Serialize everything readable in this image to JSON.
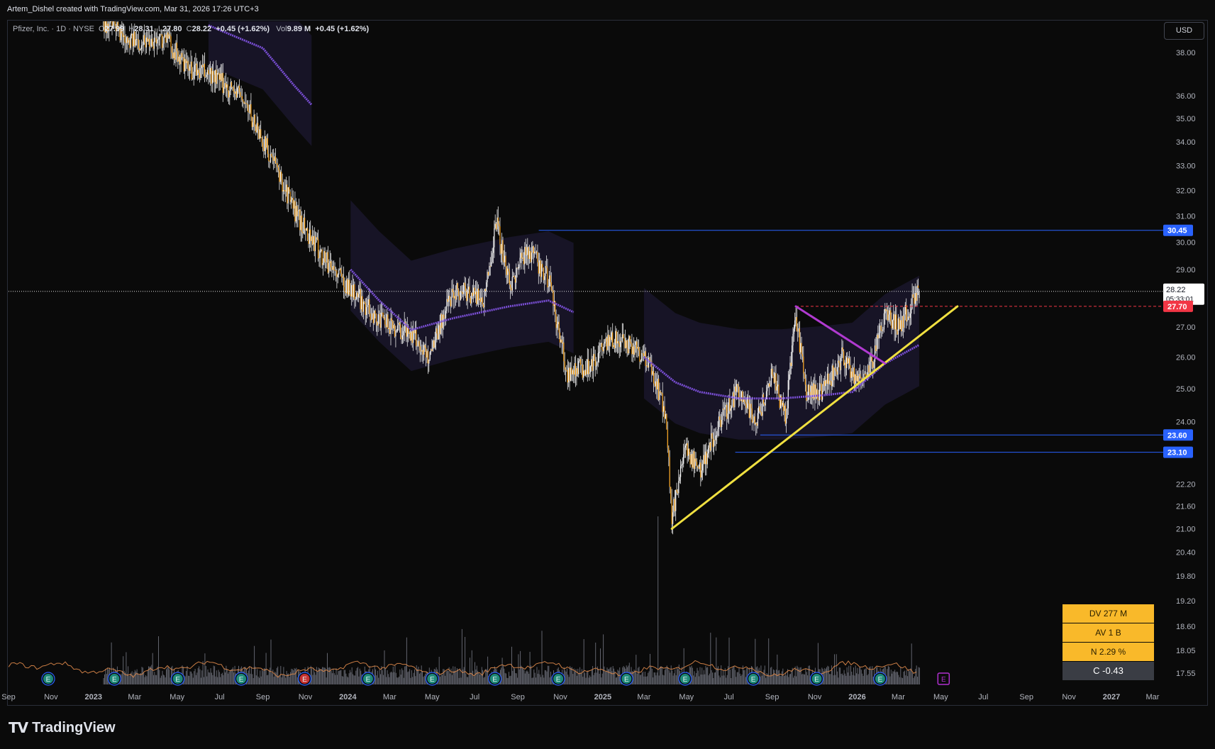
{
  "header": {
    "credit": "Artem_Dishel created with TradingView.com, Mar 31, 2026 17:26 UTC+3"
  },
  "legend": {
    "symbol": "Pfizer, Inc. · 1D · NYSE",
    "open_label": "O",
    "open": "27.99",
    "high_label": "H",
    "high": "28.31",
    "low_label": "L",
    "low": "27.80",
    "close_label": "C",
    "close": "28.22",
    "change": "+0.45 (+1.62%)",
    "vol_label": "Vol",
    "vol": "9.89 M",
    "vol_change": "+0.45 (+1.62%)"
  },
  "currency_button": "USD",
  "price_axis": {
    "ticks": [
      "38.00",
      "36.00",
      "35.00",
      "34.00",
      "33.00",
      "32.00",
      "31.00",
      "30.00",
      "29.00",
      "27.00",
      "26.00",
      "25.00",
      "24.00",
      "22.20",
      "21.60",
      "21.00",
      "20.40",
      "19.80",
      "19.20",
      "18.60",
      "18.05",
      "17.55"
    ],
    "last_price": "28.22",
    "countdown": "05:33:01",
    "badges": [
      {
        "value": "30.45",
        "color": "#2962ff"
      },
      {
        "value": "27.70",
        "color": "#f23645"
      },
      {
        "value": "23.60",
        "color": "#2962ff"
      },
      {
        "value": "23.10",
        "color": "#2962ff"
      }
    ]
  },
  "time_axis": {
    "labels": [
      "Sep",
      "Nov",
      "2023",
      "Mar",
      "May",
      "Jul",
      "Sep",
      "Nov",
      "2024",
      "Mar",
      "May",
      "Jul",
      "Sep",
      "Nov",
      "2025",
      "Mar",
      "May",
      "Jul",
      "Sep",
      "Nov",
      "2026",
      "Mar",
      "May",
      "Jul",
      "Sep",
      "Nov",
      "2027",
      "Mar"
    ]
  },
  "earnings_marker": "E",
  "stats": {
    "dv": "DV 277 M",
    "av": "AV 1 B",
    "n": "N 2.29 %",
    "c": "C  -0.43"
  },
  "logo": {
    "mark": "TV",
    "word": "TradingView"
  },
  "chart_data": {
    "type": "candlestick",
    "symbol": "Pfizer, Inc.",
    "interval": "1D",
    "exchange": "NYSE",
    "y_scale": "log",
    "ylim": [
      17.3,
      39.5
    ],
    "x_range": [
      "2022-09",
      "2027-03"
    ],
    "price_path": [
      {
        "date": "2023-01-15",
        "close": 39.5
      },
      {
        "date": "2023-03-01",
        "close": 38.5
      },
      {
        "date": "2023-04-15",
        "close": 38.7
      },
      {
        "date": "2023-05-15",
        "close": 37.2
      },
      {
        "date": "2023-06-15",
        "close": 37.0
      },
      {
        "date": "2023-08-01",
        "close": 36.0
      },
      {
        "date": "2023-09-15",
        "close": 33.2
      },
      {
        "date": "2023-10-20",
        "close": 31.0
      },
      {
        "date": "2023-11-25",
        "close": 29.5
      },
      {
        "date": "2024-01-05",
        "close": 28.3
      },
      {
        "date": "2024-02-15",
        "close": 27.2
      },
      {
        "date": "2024-04-01",
        "close": 26.8
      },
      {
        "date": "2024-04-25",
        "close": 26.0
      },
      {
        "date": "2024-06-01",
        "close": 28.3
      },
      {
        "date": "2024-07-15",
        "close": 28.0
      },
      {
        "date": "2024-08-01",
        "close": 30.8
      },
      {
        "date": "2024-08-20",
        "close": 28.4
      },
      {
        "date": "2024-09-15",
        "close": 29.8
      },
      {
        "date": "2024-10-15",
        "close": 28.6
      },
      {
        "date": "2024-11-10",
        "close": 25.5
      },
      {
        "date": "2024-12-10",
        "close": 25.7
      },
      {
        "date": "2025-01-15",
        "close": 26.6
      },
      {
        "date": "2025-02-20",
        "close": 26.3
      },
      {
        "date": "2025-03-15",
        "close": 25.4
      },
      {
        "date": "2025-04-01",
        "close": 24.2
      },
      {
        "date": "2025-04-10",
        "close": 21.3
      },
      {
        "date": "2025-05-01",
        "close": 23.2
      },
      {
        "date": "2025-05-20",
        "close": 22.6
      },
      {
        "date": "2025-06-15",
        "close": 23.8
      },
      {
        "date": "2025-07-15",
        "close": 25.0
      },
      {
        "date": "2025-08-10",
        "close": 24.0
      },
      {
        "date": "2025-09-01",
        "close": 25.5
      },
      {
        "date": "2025-09-20",
        "close": 24.1
      },
      {
        "date": "2025-10-05",
        "close": 27.4
      },
      {
        "date": "2025-10-20",
        "close": 24.8
      },
      {
        "date": "2025-11-15",
        "close": 25.0
      },
      {
        "date": "2025-12-10",
        "close": 26.0
      },
      {
        "date": "2026-01-05",
        "close": 25.2
      },
      {
        "date": "2026-01-25",
        "close": 26.0
      },
      {
        "date": "2026-02-10",
        "close": 27.5
      },
      {
        "date": "2026-03-01",
        "close": 27.0
      },
      {
        "date": "2026-03-31",
        "close": 28.22
      }
    ],
    "last": {
      "open": 27.99,
      "high": 28.31,
      "low": 27.8,
      "close": 28.22
    },
    "horizontal_levels": [
      {
        "price": 30.45,
        "from": "2024-10-01",
        "color": "#2962ff"
      },
      {
        "price": 28.22,
        "style": "dotted",
        "color": "#ffffff"
      },
      {
        "price": 27.7,
        "from": "2025-10-05",
        "style": "dashed",
        "color": "#f23645"
      },
      {
        "price": 23.6,
        "from": "2025-08-15",
        "color": "#2962ff"
      },
      {
        "price": 23.1,
        "from": "2025-07-10",
        "color": "#2962ff"
      }
    ],
    "trendlines": [
      {
        "color": "#f0e040",
        "points": [
          {
            "date": "2025-04-10",
            "price": 21.0
          },
          {
            "date": "2026-05-25",
            "price": 27.7
          }
        ]
      },
      {
        "color": "#b03ad0",
        "points": [
          {
            "date": "2025-10-05",
            "price": 27.7
          },
          {
            "date": "2026-02-10",
            "price": 25.8
          }
        ]
      }
    ],
    "anchored_vwap": [
      {
        "color": "#7a4fd6",
        "points": [
          {
            "date": "2023-06-15",
            "price": 39.3
          },
          {
            "date": "2023-09-01",
            "price": 38.2
          },
          {
            "date": "2023-10-15",
            "price": 36.5
          },
          {
            "date": "2023-11-10",
            "price": 35.6
          }
        ]
      },
      {
        "color": "#7a4fd6",
        "points": [
          {
            "date": "2024-01-05",
            "price": 29.0
          },
          {
            "date": "2024-02-15",
            "price": 27.9
          },
          {
            "date": "2024-04-01",
            "price": 26.9
          },
          {
            "date": "2024-06-01",
            "price": 27.3
          },
          {
            "date": "2024-08-20",
            "price": 27.7
          },
          {
            "date": "2024-10-15",
            "price": 27.9
          },
          {
            "date": "2024-11-20",
            "price": 27.5
          }
        ]
      },
      {
        "color": "#7a4fd6",
        "points": [
          {
            "date": "2025-03-01",
            "price": 26.0
          },
          {
            "date": "2025-04-15",
            "price": 25.2
          },
          {
            "date": "2025-05-20",
            "price": 24.9
          },
          {
            "date": "2025-07-15",
            "price": 24.7
          },
          {
            "date": "2025-09-15",
            "price": 24.7
          },
          {
            "date": "2025-11-15",
            "price": 24.8
          },
          {
            "date": "2025-12-25",
            "price": 24.9
          },
          {
            "date": "2026-02-10",
            "price": 25.8
          },
          {
            "date": "2026-03-31",
            "price": 26.4
          }
        ]
      }
    ],
    "earnings_dates": [
      "2022-10-28",
      "2023-01-31",
      "2023-05-02",
      "2023-08-01",
      "2023-10-31",
      "2024-01-30",
      "2024-05-01",
      "2024-07-30",
      "2024-10-29",
      "2025-02-04",
      "2025-04-29",
      "2025-08-05",
      "2025-11-04",
      "2026-02-03",
      "2026-05-05"
    ],
    "volume": {
      "spike_date": "2025-03-20",
      "note": "volume histogram along bottom"
    }
  }
}
